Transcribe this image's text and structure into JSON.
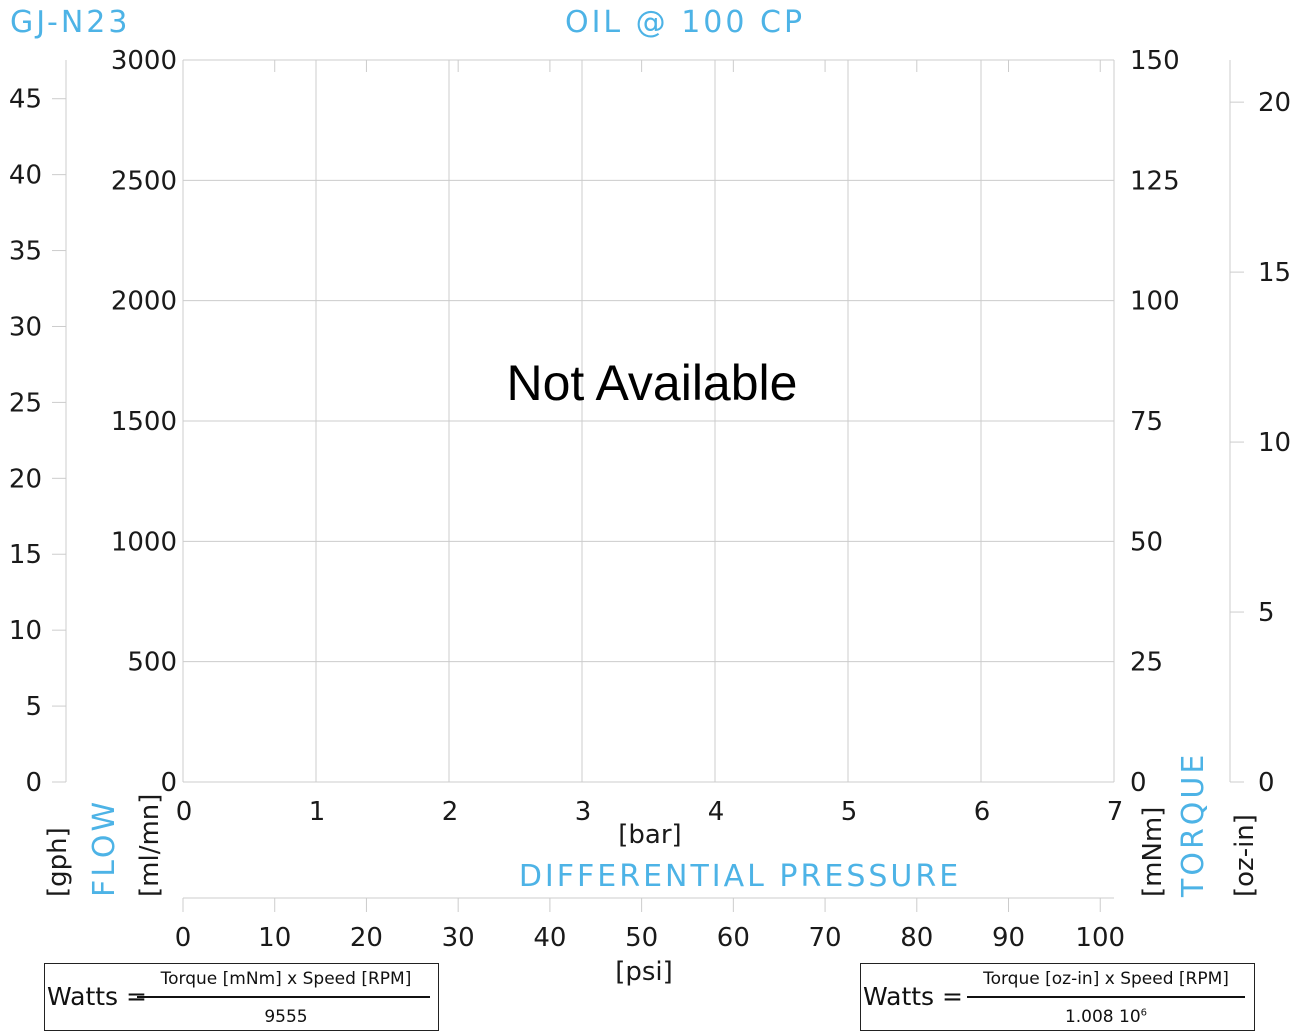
{
  "chart_data": {
    "type": "line",
    "model": "GJ-N23",
    "condition": "OIL @ 100 CP",
    "message": "Not Available",
    "series": [],
    "axes": {
      "flow_ml": {
        "unit": "[ml/mn]",
        "label": "FLOW",
        "range": [
          0,
          3000
        ],
        "ticks": [
          0,
          500,
          1000,
          1500,
          2000,
          2500,
          3000
        ]
      },
      "flow_gph": {
        "unit": "[gph]",
        "range": [
          0,
          47.55
        ],
        "ticks": [
          0,
          5,
          10,
          15,
          20,
          25,
          30,
          35,
          40,
          45
        ]
      },
      "pressure_bar": {
        "unit": "[bar]",
        "label": "DIFFERENTIAL PRESSURE",
        "range": [
          0,
          7
        ],
        "ticks": [
          0,
          1,
          2,
          3,
          4,
          5,
          6,
          7
        ]
      },
      "pressure_psi": {
        "unit": "[psi]",
        "range": [
          0,
          101.5
        ],
        "ticks": [
          0,
          10,
          20,
          30,
          40,
          50,
          60,
          70,
          80,
          90,
          100
        ]
      },
      "torque_mnm": {
        "unit": "[mNm]",
        "label": "TORQUE",
        "range": [
          0,
          150
        ],
        "ticks": [
          0,
          25,
          50,
          75,
          100,
          125,
          150
        ]
      },
      "torque_ozin": {
        "unit": "[oz-in]",
        "range": [
          0,
          21.24
        ],
        "ticks": [
          0,
          5,
          10,
          15,
          20
        ]
      }
    },
    "grid": true
  },
  "formulas": {
    "metric": {
      "lhs": "Watts =",
      "numerator": "Torque [mNm] x Speed [RPM]",
      "denominator": "9555"
    },
    "imperial": {
      "lhs": "Watts =",
      "numerator": "Torque [oz-in] x Speed [RPM]",
      "denominator_base": "1.008 10",
      "denominator_exp": "6"
    }
  }
}
